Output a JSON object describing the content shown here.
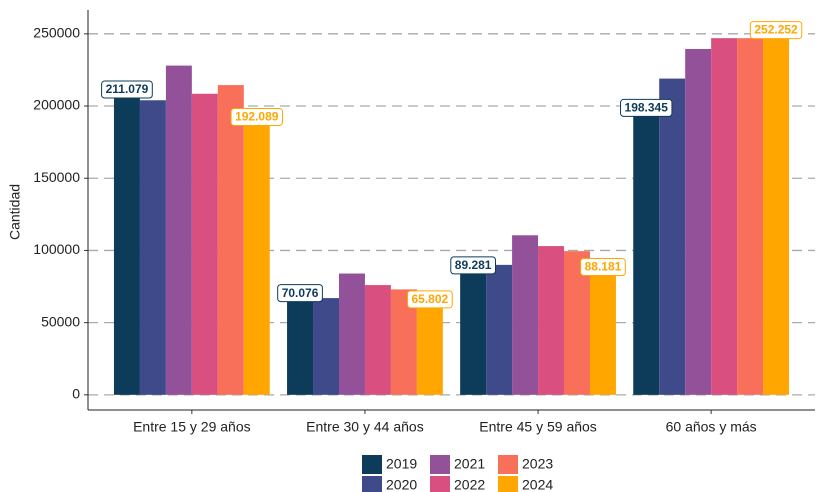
{
  "chart_data": {
    "type": "bar",
    "y_label": "Cantidad",
    "categories": [
      "Entre 15 y 29 años",
      "Entre 30 y 44 años",
      "Entre 45 y 59 años",
      "60 años y más"
    ],
    "series": [
      {
        "name": "2019",
        "color": "#0d3b5a",
        "values": [
          211079,
          70076,
          89281,
          198345
        ],
        "value_labels": [
          "211.079",
          "70.076",
          "89.281",
          "198.345"
        ]
      },
      {
        "name": "2020",
        "color": "#3e4a89",
        "values": [
          204000,
          67000,
          90000,
          219000
        ]
      },
      {
        "name": "2021",
        "color": "#93519a",
        "values": [
          228000,
          84000,
          110500,
          239500
        ]
      },
      {
        "name": "2022",
        "color": "#d94f80",
        "values": [
          208500,
          76000,
          103000,
          247000
        ]
      },
      {
        "name": "2023",
        "color": "#f86f5a",
        "values": [
          214500,
          73000,
          99500,
          247000
        ]
      },
      {
        "name": "2024",
        "color": "#ffa600",
        "values": [
          192089,
          65802,
          88181,
          252252
        ],
        "value_labels": [
          "192.089",
          "65.802",
          "88.181",
          "252.252"
        ]
      }
    ],
    "ylim": [
      -10500,
      266500
    ],
    "yticks": [
      0,
      50000,
      100000,
      150000,
      200000,
      250000
    ],
    "grid": true,
    "legend": "bottom"
  }
}
